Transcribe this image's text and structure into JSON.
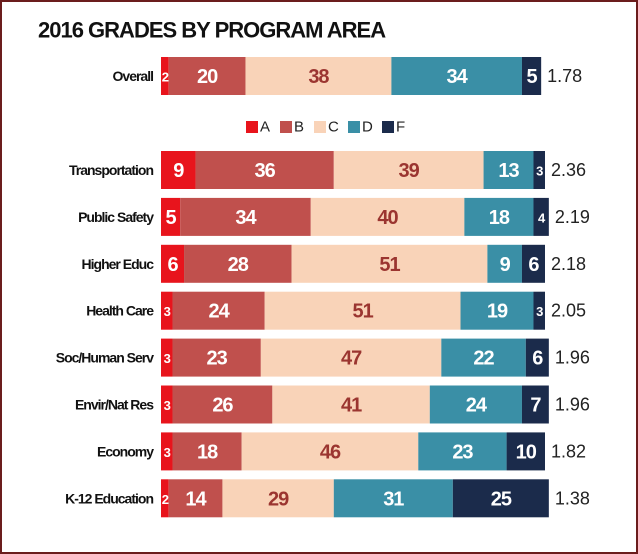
{
  "chart_data": {
    "type": "stacked-bar",
    "title": "2016 GRADES BY PROGRAM AREA",
    "categories": [
      "Overall",
      "Transportation",
      "Public Safety",
      "Higher Educ",
      "Health Care",
      "Soc/Human Serv",
      "Envir/Nat Res",
      "Economy",
      "K-12 Education"
    ],
    "series": [
      {
        "name": "A",
        "color": "#e8141c",
        "values": [
          2,
          9,
          5,
          6,
          3,
          3,
          3,
          3,
          2
        ]
      },
      {
        "name": "B",
        "color": "#c0504d",
        "values": [
          20,
          36,
          34,
          28,
          24,
          23,
          26,
          18,
          14
        ]
      },
      {
        "name": "C",
        "color": "#f9d3b8",
        "values": [
          38,
          39,
          40,
          51,
          51,
          47,
          41,
          46,
          29
        ]
      },
      {
        "name": "D",
        "color": "#3a8fa6",
        "values": [
          34,
          13,
          18,
          9,
          19,
          22,
          24,
          23,
          31
        ]
      },
      {
        "name": "F",
        "color": "#1b2b4b",
        "values": [
          5,
          3,
          4,
          6,
          3,
          6,
          7,
          10,
          25
        ]
      }
    ],
    "averages": [
      1.78,
      2.36,
      2.19,
      2.18,
      2.05,
      1.96,
      1.96,
      1.82,
      1.38
    ],
    "xlim": [
      0,
      100
    ]
  }
}
